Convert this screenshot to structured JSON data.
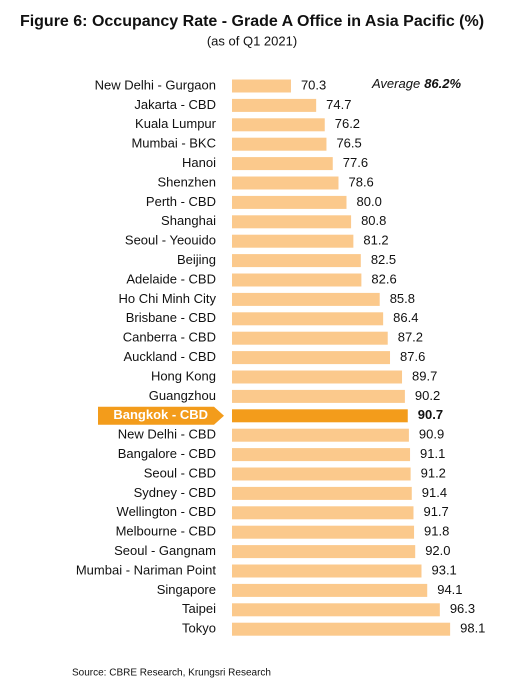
{
  "chart_data": {
    "type": "bar",
    "orientation": "horizontal",
    "title": "Figure 6: Occupancy Rate - Grade A Office in Asia Pacific (%)",
    "subtitle": "(as of Q1 2021)",
    "categories": [
      "New Delhi - Gurgaon",
      "Jakarta - CBD",
      "Kuala Lumpur",
      "Mumbai - BKC",
      "Hanoi",
      "Shenzhen",
      "Perth - CBD",
      "Shanghai",
      "Seoul - Yeouido",
      "Beijing",
      "Adelaide - CBD",
      "Ho Chi Minh City",
      "Brisbane - CBD",
      "Canberra - CBD",
      "Auckland - CBD",
      "Hong Kong",
      "Guangzhou",
      "Bangkok - CBD",
      "New Delhi - CBD",
      "Bangalore - CBD",
      "Seoul - CBD",
      "Sydney - CBD",
      "Wellington - CBD",
      "Melbourne - CBD",
      "Seoul - Gangnam",
      "Mumbai - Nariman Point",
      "Singapore",
      "Taipei",
      "Tokyo"
    ],
    "values": [
      70.3,
      74.7,
      76.2,
      76.5,
      77.6,
      78.6,
      80.0,
      80.8,
      81.2,
      82.5,
      82.6,
      85.8,
      86.4,
      87.2,
      87.6,
      89.7,
      90.2,
      90.7,
      90.9,
      91.1,
      91.2,
      91.4,
      91.7,
      91.8,
      92.0,
      93.1,
      94.1,
      96.3,
      98.1
    ],
    "value_labels": [
      "70.3",
      "74.7",
      "76.2",
      "76.5",
      "77.6",
      "78.6",
      "80.0",
      "80.8",
      "81.2",
      "82.5",
      "82.6",
      "85.8",
      "86.4",
      "87.2",
      "87.6",
      "89.7",
      "90.2",
      "90.7",
      "90.9",
      "91.1",
      "91.2",
      "91.4",
      "91.7",
      "91.8",
      "92.0",
      "93.1",
      "94.1",
      "96.3",
      "98.1"
    ],
    "color": "#fbc98c",
    "highlight": 17,
    "highlight_color": "#f39c1b",
    "xlim": [
      60,
      100
    ],
    "average_text": "Average",
    "average": {
      "value": 86.2,
      "label": "86.2%"
    },
    "source": "Source: CBRE Research, Krungsri Research"
  }
}
